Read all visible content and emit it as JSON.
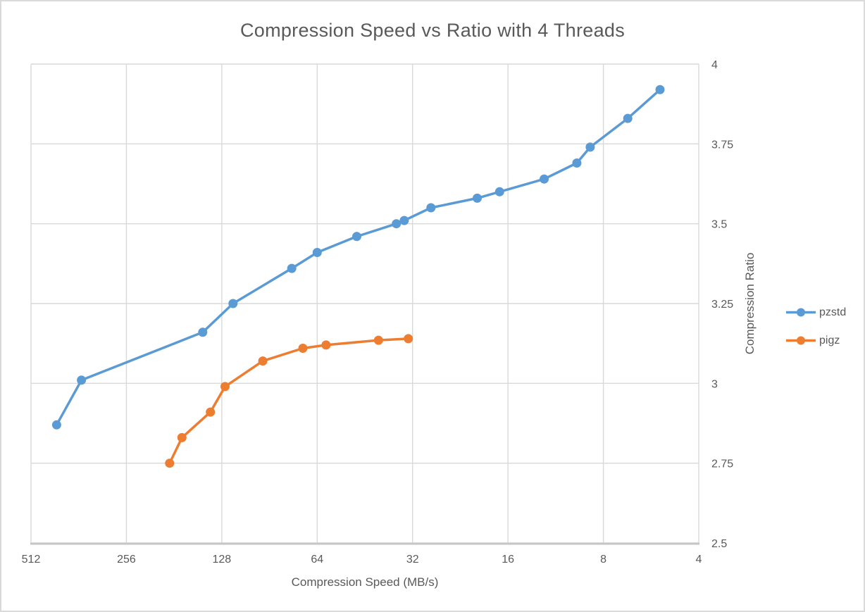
{
  "window": {
    "background": "#ffffff",
    "border_color": "#dadada"
  },
  "chart_data": {
    "type": "line",
    "title": "Compression Speed vs Ratio with 4 Threads",
    "xlabel": "Compression Speed (MB/s)",
    "ylabel": "Compression Ratio",
    "x_scale": "log2",
    "x_reversed": true,
    "y_axis_side": "right",
    "x_range": [
      512,
      4
    ],
    "y_range": [
      4,
      2.5
    ],
    "x_ticks": [
      512,
      256,
      128,
      64,
      32,
      16,
      8,
      4
    ],
    "y_ticks": [
      4,
      3.75,
      3.5,
      3.25,
      3,
      2.75,
      2.5
    ],
    "grid": true,
    "legend_position": "right-middle",
    "style": {
      "grid_color": "#d9d9d9",
      "axis_line_color": "#c6c6c6",
      "text_color": "#595959"
    },
    "series": [
      {
        "name": "pzstd",
        "color": "#5b9bd5",
        "points_format": "[speed_MBps, compression_ratio]",
        "points": [
          [
            425,
            2.87
          ],
          [
            355,
            3.01
          ],
          [
            147,
            3.16
          ],
          [
            118,
            3.25
          ],
          [
            77,
            3.36
          ],
          [
            64,
            3.41
          ],
          [
            48,
            3.46
          ],
          [
            36,
            3.5
          ],
          [
            34,
            3.51
          ],
          [
            28,
            3.55
          ],
          [
            20,
            3.58
          ],
          [
            17,
            3.6
          ],
          [
            12.3,
            3.64
          ],
          [
            9.7,
            3.69
          ],
          [
            8.8,
            3.74
          ],
          [
            6.7,
            3.83
          ],
          [
            5.3,
            3.92
          ]
        ]
      },
      {
        "name": "pigz",
        "color": "#ed7d31",
        "points_format": "[speed_MBps, compression_ratio]",
        "points": [
          [
            187,
            2.75
          ],
          [
            171,
            2.83
          ],
          [
            139,
            2.91
          ],
          [
            125,
            2.99
          ],
          [
            95,
            3.07
          ],
          [
            71,
            3.11
          ],
          [
            60,
            3.12
          ],
          [
            41,
            3.135
          ],
          [
            33,
            3.14
          ]
        ]
      }
    ]
  }
}
